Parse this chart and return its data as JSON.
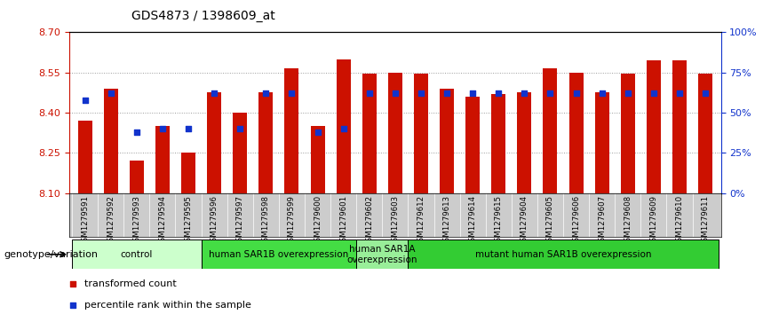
{
  "title": "GDS4873 / 1398609_at",
  "samples": [
    "GSM1279591",
    "GSM1279592",
    "GSM1279593",
    "GSM1279594",
    "GSM1279595",
    "GSM1279596",
    "GSM1279597",
    "GSM1279598",
    "GSM1279599",
    "GSM1279600",
    "GSM1279601",
    "GSM1279602",
    "GSM1279603",
    "GSM1279612",
    "GSM1279613",
    "GSM1279614",
    "GSM1279615",
    "GSM1279604",
    "GSM1279605",
    "GSM1279606",
    "GSM1279607",
    "GSM1279608",
    "GSM1279609",
    "GSM1279610",
    "GSM1279611"
  ],
  "transformed_counts": [
    8.37,
    8.49,
    8.22,
    8.35,
    8.25,
    8.475,
    8.4,
    8.475,
    8.565,
    8.35,
    8.6,
    8.545,
    8.55,
    8.545,
    8.49,
    8.46,
    8.47,
    8.475,
    8.565,
    8.55,
    8.475,
    8.545,
    8.595,
    8.595,
    8.545
  ],
  "percentile_ranks": [
    58,
    62,
    38,
    40,
    40,
    62,
    40,
    62,
    62,
    38,
    40,
    62,
    62,
    62,
    62,
    62,
    62,
    62,
    62,
    62,
    62,
    62,
    62,
    62,
    62
  ],
  "ylim_left": [
    8.1,
    8.7
  ],
  "ylim_right": [
    0,
    100
  ],
  "yticks_left": [
    8.1,
    8.25,
    8.4,
    8.55,
    8.7
  ],
  "yticks_right": [
    0,
    25,
    50,
    75,
    100
  ],
  "ytick_labels_right": [
    "0%",
    "25%",
    "50%",
    "75%",
    "100%"
  ],
  "bar_color": "#cc1100",
  "dot_color": "#1133cc",
  "baseline": 8.1,
  "groups": [
    {
      "label": "control",
      "start": 0,
      "end": 4,
      "color": "#ccffcc"
    },
    {
      "label": "human SAR1B overexpression",
      "start": 5,
      "end": 10,
      "color": "#44dd44"
    },
    {
      "label": "human SAR1A\noverexpression",
      "start": 11,
      "end": 12,
      "color": "#99ee99"
    },
    {
      "label": "mutant human SAR1B overexpression",
      "start": 13,
      "end": 24,
      "color": "#33cc33"
    }
  ],
  "legend_items": [
    {
      "label": "transformed count",
      "color": "#cc1100",
      "marker": "s"
    },
    {
      "label": "percentile rank within the sample",
      "color": "#1133cc",
      "marker": "s"
    }
  ],
  "genotype_label": "genotype/variation",
  "left_axis_color": "#cc1100",
  "right_axis_color": "#1133cc",
  "grid_color": "#999999",
  "tick_bg_color": "#cccccc"
}
